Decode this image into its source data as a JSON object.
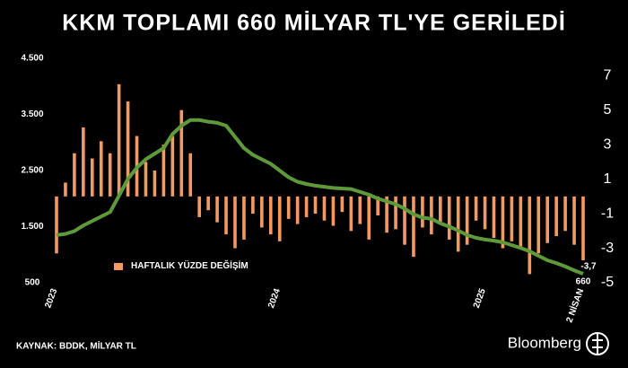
{
  "chart_data": {
    "type": "bar-line",
    "title": "KKM TOPLAMI 660 MİLYAR TL'YE GERİLEDİ",
    "source": "KAYNAK: BDDK, MİLYAR TL",
    "brand": "Bloomberg",
    "categories": [
      "2023",
      null,
      null,
      null,
      null,
      null,
      null,
      null,
      null,
      null,
      null,
      null,
      null,
      null,
      null,
      null,
      null,
      null,
      null,
      null,
      null,
      null,
      null,
      null,
      null,
      "2024",
      null,
      null,
      null,
      null,
      null,
      null,
      null,
      null,
      null,
      null,
      null,
      null,
      null,
      null,
      null,
      null,
      null,
      null,
      null,
      null,
      null,
      null,
      "2025",
      null,
      null,
      null,
      null,
      null,
      null,
      null,
      null,
      null,
      null,
      "2 NİSAN"
    ],
    "series": [
      {
        "name": "HAFTALIK YÜZDE DEĞİŞİM",
        "type": "bar",
        "axis": "y2",
        "color": "#f39a62",
        "values": [
          -3.3,
          0.8,
          2.5,
          4.0,
          2.2,
          3.2,
          2.5,
          6.5,
          5.5,
          3.5,
          2.0,
          1.5,
          3.0,
          3.5,
          5.0,
          2.5,
          -1.2,
          -0.8,
          -1.5,
          -2.2,
          -3.0,
          -2.5,
          -1.0,
          -1.8,
          -2.2,
          -2.6,
          -1.3,
          -1.6,
          -1.2,
          -1.0,
          -1.4,
          -1.7,
          -0.9,
          -2.0,
          -1.6,
          -2.5,
          -1.1,
          -2.1,
          -1.9,
          -2.8,
          -3.5,
          -1.8,
          -2.2,
          -1.6,
          -2.5,
          -3.2,
          -2.8,
          -1.4,
          -1.9,
          -2.4,
          -3.0,
          -2.6,
          -2.9,
          -4.5,
          -3.3,
          -2.7,
          -2.3,
          -2.0,
          -2.8,
          -3.7
        ],
        "value_labels": [
          null,
          null,
          null,
          null,
          null,
          null,
          null,
          null,
          null,
          null,
          null,
          null,
          null,
          null,
          null,
          null,
          null,
          null,
          null,
          null,
          null,
          null,
          null,
          null,
          null,
          null,
          null,
          null,
          null,
          null,
          null,
          null,
          null,
          null,
          null,
          null,
          null,
          null,
          null,
          null,
          null,
          null,
          null,
          null,
          null,
          null,
          null,
          null,
          null,
          null,
          null,
          null,
          null,
          null,
          null,
          null,
          null,
          null,
          null,
          "-3,7"
        ]
      },
      {
        "type": "line",
        "axis": "y",
        "color": "#5e9a3a",
        "values": [
          1350,
          1370,
          1420,
          1520,
          1600,
          1680,
          1760,
          2050,
          2350,
          2550,
          2700,
          2800,
          2900,
          3150,
          3300,
          3400,
          3400,
          3370,
          3350,
          3300,
          3100,
          2900,
          2780,
          2700,
          2620,
          2500,
          2380,
          2300,
          2260,
          2230,
          2210,
          2190,
          2180,
          2170,
          2120,
          2070,
          2000,
          1950,
          1900,
          1820,
          1720,
          1660,
          1640,
          1560,
          1500,
          1430,
          1350,
          1300,
          1270,
          1250,
          1220,
          1170,
          1120,
          1060,
          980,
          900,
          850,
          790,
          720,
          660
        ]
      }
    ],
    "ylim": [
      500,
      4500
    ],
    "yticks": [
      500,
      {
        "value": 1500,
        "label": "1.500"
      },
      {
        "value": 2500,
        "label": "2.500"
      },
      {
        "value": 3500,
        "label": "3.500"
      },
      {
        "value": 4500,
        "label": "4.500"
      }
    ],
    "y2lim": [
      -5,
      8
    ],
    "y2ticks": [
      -5,
      -3,
      -1,
      1,
      3,
      5,
      7
    ]
  }
}
